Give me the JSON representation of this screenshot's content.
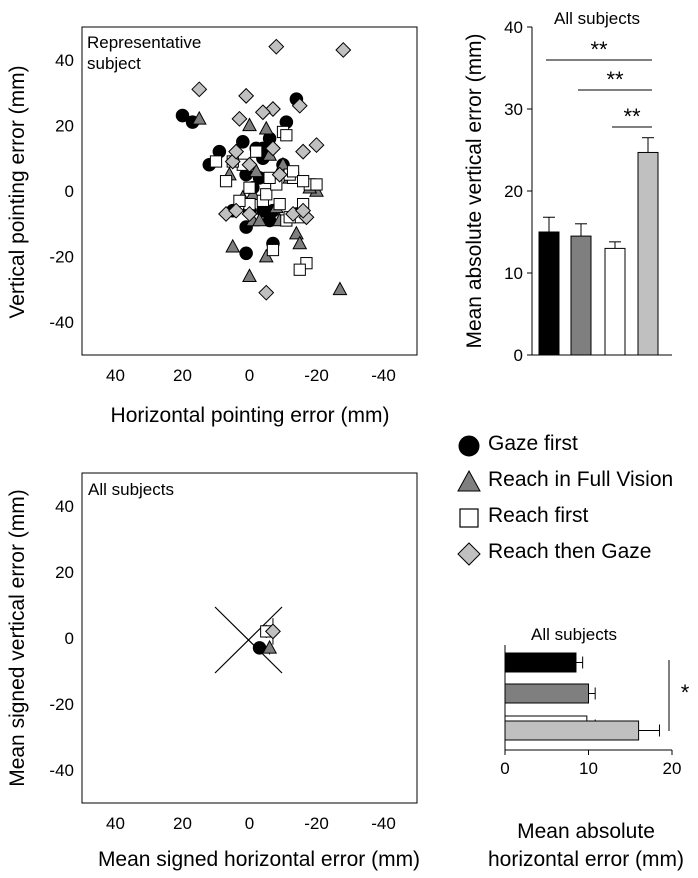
{
  "legend": {
    "gaze_first": "Gaze first",
    "reach_full_vision": "Reach in Full Vision",
    "reach_first": "Reach first",
    "reach_then_gaze": "Reach then Gaze"
  },
  "colors": {
    "gaze_first": "#000000",
    "reach_full_vision": "#7f7f7f",
    "reach_first": "#ffffff",
    "reach_then_gaze": "#c0c0c0"
  },
  "chart_data": [
    {
      "type": "scatter",
      "annotation": "Representative subject",
      "xlabel": "Horizontal pointing error (mm)",
      "ylabel": "Vertical pointing error (mm)",
      "xlim": [
        50,
        -50
      ],
      "ylim": [
        -50,
        50
      ],
      "xticks": [
        40,
        20,
        0,
        -20,
        -40
      ],
      "yticks": [
        -40,
        -20,
        0,
        20,
        40
      ],
      "xtick_labels": [
        "40",
        "20",
        "0",
        "-20",
        "-40"
      ],
      "ytick_labels": [
        "-40",
        "-20",
        "0",
        "20",
        "40"
      ],
      "series": [
        {
          "name": "Gaze first",
          "marker": "circle",
          "points": [
            [
              20,
              23
            ],
            [
              17,
              21
            ],
            [
              -14,
              28
            ],
            [
              -11,
              21
            ],
            [
              12,
              8
            ],
            [
              9,
              12
            ],
            [
              2,
              15
            ],
            [
              -2,
              13
            ],
            [
              -4,
              13
            ],
            [
              -6,
              16
            ],
            [
              -4,
              10
            ],
            [
              -10,
              8
            ],
            [
              1,
              5
            ],
            [
              -3,
              4
            ],
            [
              -1,
              1
            ],
            [
              0,
              -6
            ],
            [
              -4,
              -6
            ],
            [
              -7,
              -6
            ],
            [
              -14,
              -7
            ],
            [
              -6,
              -9
            ],
            [
              1,
              -11
            ],
            [
              -7,
              -16
            ],
            [
              1,
              -19
            ],
            [
              5,
              -6
            ]
          ]
        },
        {
          "name": "Reach in Full Vision",
          "marker": "triangle",
          "points": [
            [
              -20,
              0
            ],
            [
              -5,
              19
            ],
            [
              0,
              20
            ],
            [
              15,
              22
            ],
            [
              -6,
              11
            ],
            [
              -12,
              4
            ],
            [
              -10,
              8
            ],
            [
              -18,
              1
            ],
            [
              -8,
              -5
            ],
            [
              -1,
              -1
            ],
            [
              -9,
              -9
            ],
            [
              -1,
              -9
            ],
            [
              -3,
              -9
            ],
            [
              -14,
              -13
            ],
            [
              -5,
              -20
            ],
            [
              -15,
              -16
            ],
            [
              5,
              -17
            ],
            [
              0,
              -26
            ],
            [
              -27,
              -30
            ],
            [
              2,
              -2
            ],
            [
              6,
              5
            ],
            [
              -2,
              6
            ]
          ]
        },
        {
          "name": "Reach first",
          "marker": "square",
          "points": [
            [
              -10,
              18
            ],
            [
              -13,
              4
            ],
            [
              -12,
              5
            ],
            [
              -18,
              2
            ],
            [
              -20,
              2
            ],
            [
              -16,
              -4
            ],
            [
              -15,
              -8
            ],
            [
              -11,
              -9
            ],
            [
              -7,
              -18
            ],
            [
              -9,
              -4
            ],
            [
              -4,
              -3
            ],
            [
              0,
              1
            ],
            [
              2,
              8
            ],
            [
              5,
              9
            ],
            [
              -2,
              12
            ],
            [
              0,
              -4
            ],
            [
              -5,
              -1
            ],
            [
              -8,
              2
            ],
            [
              -12,
              -8
            ],
            [
              -17,
              -22
            ],
            [
              -15,
              -24
            ],
            [
              10,
              9
            ],
            [
              7,
              3
            ],
            [
              -11,
              17
            ],
            [
              -13,
              6
            ],
            [
              3,
              -3
            ],
            [
              -6,
              4
            ],
            [
              -16,
              3
            ]
          ]
        },
        {
          "name": "Reach then Gaze",
          "marker": "diamond",
          "points": [
            [
              -8,
              44
            ],
            [
              -28,
              43
            ],
            [
              15,
              31
            ],
            [
              1,
              29
            ],
            [
              -7,
              25
            ],
            [
              -15,
              26
            ],
            [
              -20,
              14
            ],
            [
              -16,
              12
            ],
            [
              3,
              22
            ],
            [
              -4,
              24
            ],
            [
              5,
              9
            ],
            [
              -9,
              5
            ],
            [
              -13,
              -7
            ],
            [
              -17,
              -8
            ],
            [
              7,
              -7
            ],
            [
              4,
              -6
            ],
            [
              0,
              8
            ],
            [
              -7,
              13
            ],
            [
              -5,
              -31
            ],
            [
              -16,
              -6
            ],
            [
              0,
              -7
            ],
            [
              4,
              12
            ]
          ]
        }
      ]
    },
    {
      "type": "bar",
      "title": "All subjects",
      "orientation": "vertical",
      "categories": [
        "Gaze first",
        "Reach in Full Vision",
        "Reach first",
        "Reach then Gaze"
      ],
      "values": [
        15.0,
        14.5,
        13.0,
        24.7
      ],
      "errors": [
        1.8,
        1.5,
        0.8,
        1.8
      ],
      "ylabel": "Mean absolute vertical error (mm)",
      "xlabel": "",
      "ylim": [
        0,
        40
      ],
      "yticks": [
        0,
        10,
        20,
        30,
        40
      ],
      "ytick_labels": [
        "0",
        "10",
        "20",
        "30",
        "40"
      ],
      "significance": [
        {
          "from": 0,
          "to": 3,
          "label": "**"
        },
        {
          "from": 1,
          "to": 3,
          "label": "**"
        },
        {
          "from": 2,
          "to": 3,
          "label": "**"
        }
      ]
    },
    {
      "type": "scatter",
      "annotation": "All subjects",
      "xlabel": "Mean signed horizontal error (mm)",
      "ylabel": "Mean signed vertical error (mm)",
      "xlim": [
        50,
        -50
      ],
      "ylim": [
        -50,
        50
      ],
      "xticks": [
        40,
        20,
        0,
        -20,
        -40
      ],
      "yticks": [
        -40,
        -20,
        0,
        20,
        40
      ],
      "xtick_labels": [
        "40",
        "20",
        "0",
        "-20",
        "-40"
      ],
      "ytick_labels": [
        "-40",
        "-20",
        "0",
        "20",
        "40"
      ],
      "series": [
        {
          "name": "Gaze first",
          "marker": "circle",
          "points": [
            [
              -3,
              -3
            ]
          ],
          "xerr": 1,
          "yerr": 1
        },
        {
          "name": "Reach in Full Vision",
          "marker": "triangle",
          "points": [
            [
              -6,
              -3
            ]
          ],
          "xerr": 1,
          "yerr": 2
        },
        {
          "name": "Reach first",
          "marker": "square",
          "points": [
            [
              -5,
              2
            ]
          ],
          "xerr": 1,
          "yerr": 2
        },
        {
          "name": "Reach then Gaze",
          "marker": "diamond",
          "points": [
            [
              -7,
              2
            ]
          ],
          "xerr": 1,
          "yerr": 4
        }
      ]
    },
    {
      "type": "bar",
      "title": "All subjects",
      "orientation": "horizontal",
      "categories": [
        "Gaze first",
        "Reach in Full Vision",
        "Reach first",
        "Reach then Gaze"
      ],
      "values": [
        8.5,
        10.0,
        9.8,
        16.0
      ],
      "errors": [
        0.8,
        0.8,
        1.0,
        2.5
      ],
      "xlabel": "Mean absolute horizontal error (mm)",
      "xlabel_lines": [
        "Mean absolute",
        "horizontal error (mm)"
      ],
      "ylabel": "",
      "xlim": [
        0,
        20
      ],
      "xticks": [
        0,
        10,
        20
      ],
      "xtick_labels": [
        "0",
        "10",
        "20"
      ],
      "significance": [
        {
          "from": 0,
          "to": 3,
          "label": "*"
        }
      ]
    }
  ]
}
